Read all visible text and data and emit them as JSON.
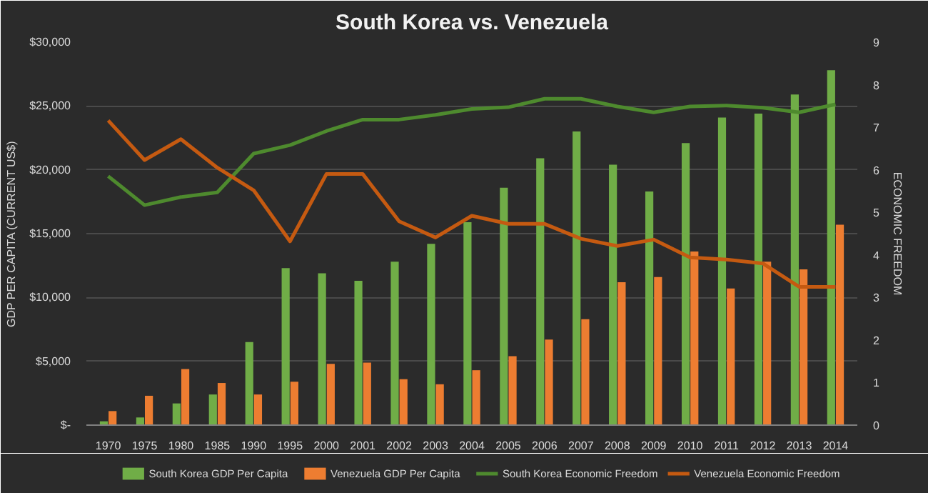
{
  "chart_data": {
    "type": "bar",
    "title": "South Korea vs. Venezuela",
    "categories": [
      "1970",
      "1975",
      "1980",
      "1985",
      "1990",
      "1995",
      "2000",
      "2001",
      "2002",
      "2003",
      "2004",
      "2005",
      "2006",
      "2007",
      "2008",
      "2009",
      "2010",
      "2011",
      "2012",
      "2013",
      "2014"
    ],
    "series": [
      {
        "name": "South Korea GDP Per Capita",
        "color": "#70ad47",
        "values": [
          300,
          600,
          1700,
          2400,
          6500,
          12300,
          11900,
          11300,
          12800,
          14200,
          15900,
          18600,
          20900,
          23000,
          20400,
          18300,
          22100,
          24100,
          24400,
          25900,
          27800
        ]
      },
      {
        "name": "Venezuela GDP Per Capita",
        "color": "#ed7d31",
        "values": [
          1100,
          2300,
          4400,
          3300,
          2400,
          3400,
          4800,
          4900,
          3600,
          3200,
          4300,
          5400,
          6700,
          8300,
          11200,
          11600,
          13600,
          10700,
          12800,
          12200,
          15700
        ]
      },
      {
        "name": "South Korea Economic Freedom",
        "type": "line",
        "axis": "y2",
        "color": "#4e8a2e",
        "values": [
          5.85,
          5.17,
          5.36,
          5.47,
          6.38,
          6.58,
          6.91,
          7.18,
          7.18,
          7.29,
          7.43,
          7.47,
          7.67,
          7.67,
          7.49,
          7.35,
          7.49,
          7.51,
          7.46,
          7.35,
          7.54
        ]
      },
      {
        "name": "Venezuela Economic Freedom",
        "type": "line",
        "axis": "y2",
        "color": "#c55a11",
        "values": [
          7.16,
          6.23,
          6.72,
          6.05,
          5.52,
          4.32,
          5.9,
          5.9,
          4.79,
          4.41,
          4.92,
          4.73,
          4.73,
          4.38,
          4.21,
          4.36,
          3.94,
          3.89,
          3.8,
          3.25,
          3.25
        ]
      }
    ],
    "ylabel": "GDP PER CAPITA (CURRENT US$)",
    "y2label": "ECONOMIC FREEDOM",
    "ylim": [
      0,
      30000
    ],
    "yticks": [
      {
        "value": 0,
        "label": "$-"
      },
      {
        "value": 5000,
        "label": "$5,000"
      },
      {
        "value": 10000,
        "label": "$10,000"
      },
      {
        "value": 15000,
        "label": "$15,000"
      },
      {
        "value": 20000,
        "label": "$20,000"
      },
      {
        "value": 25000,
        "label": "$25,000"
      },
      {
        "value": 30000,
        "label": "$30,000"
      }
    ],
    "y2lim": [
      0,
      9
    ],
    "y2ticks": [
      0,
      1,
      2,
      3,
      4,
      5,
      6,
      7,
      8,
      9
    ],
    "grid": "y",
    "legend": "bottom",
    "line_style": "solid",
    "marker": "none"
  }
}
